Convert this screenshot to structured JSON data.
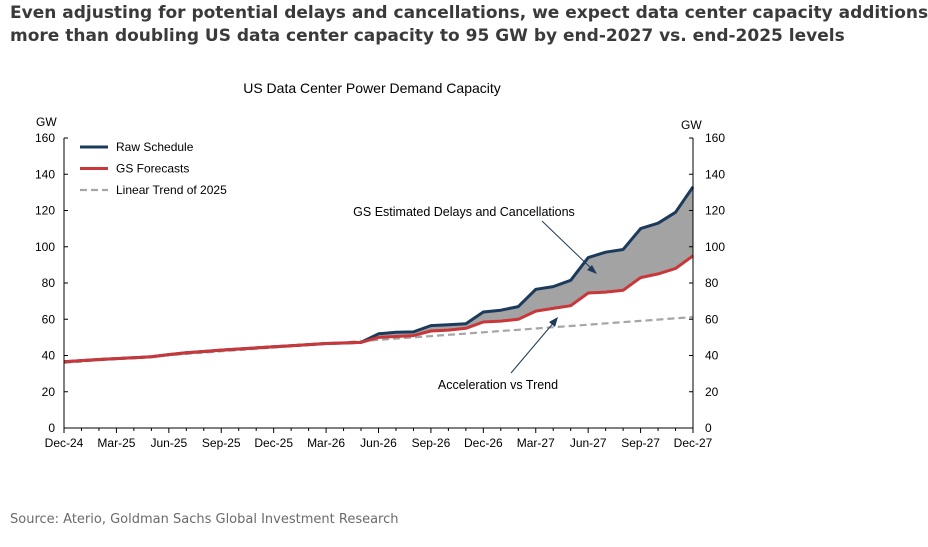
{
  "headline": {
    "line1": "Even adjusting for potential delays and cancellations, we expect data center capacity additions",
    "line2": "more than doubling US data center capacity to 95 GW by end-2027 vs. end-2025 levels"
  },
  "source": "Source: Aterio, Goldman Sachs Global Investment Research",
  "colors": {
    "raw": "#1b3a5c",
    "gs": "#c8373a",
    "trend": "#a6a6a6",
    "gap_fill": "#a3a3a3",
    "axis": "#000000"
  },
  "chart_data": {
    "type": "line",
    "title": "US Data Center Power Demand Capacity",
    "y_unit_left": "GW",
    "y_unit_right": "GW",
    "ylim": [
      0,
      160
    ],
    "y_ticks": [
      0,
      20,
      40,
      60,
      80,
      100,
      120,
      140,
      160
    ],
    "x_tick_labels": [
      "Dec-24",
      "Mar-25",
      "Jun-25",
      "Sep-25",
      "Dec-25",
      "Mar-26",
      "Jun-26",
      "Sep-26",
      "Dec-26",
      "Mar-27",
      "Jun-27",
      "Sep-27",
      "Dec-27"
    ],
    "x_months": [
      "Dec-24",
      "Jan-25",
      "Feb-25",
      "Mar-25",
      "Apr-25",
      "May-25",
      "Jun-25",
      "Jul-25",
      "Aug-25",
      "Sep-25",
      "Oct-25",
      "Nov-25",
      "Dec-25",
      "Jan-26",
      "Feb-26",
      "Mar-26",
      "Apr-26",
      "May-26",
      "Jun-26",
      "Jul-26",
      "Aug-26",
      "Sep-26",
      "Oct-26",
      "Nov-26",
      "Dec-26",
      "Jan-27",
      "Feb-27",
      "Mar-27",
      "Apr-27",
      "May-27",
      "Jun-27",
      "Jul-27",
      "Aug-27",
      "Sep-27",
      "Oct-27",
      "Nov-27",
      "Dec-27"
    ],
    "legend_position": "top-left",
    "series": [
      {
        "name": "Raw Schedule",
        "color": "#1b3a5c",
        "style": "solid",
        "values": [
          36.5,
          37.2,
          37.8,
          38.3,
          38.8,
          39.3,
          40.5,
          41.5,
          42.2,
          43,
          43.6,
          44.2,
          44.8,
          45.4,
          46,
          46.6,
          46.9,
          47.2,
          52,
          52.8,
          53,
          56.5,
          57,
          57.5,
          64,
          65,
          67,
          76.5,
          78,
          81.5,
          94,
          97,
          98.5,
          110,
          113,
          119,
          133
        ]
      },
      {
        "name": "GS Forecasts",
        "color": "#c8373a",
        "style": "solid",
        "values": [
          36.5,
          37.2,
          37.8,
          38.3,
          38.8,
          39.3,
          40.5,
          41.5,
          42.2,
          43,
          43.6,
          44.2,
          44.8,
          45.4,
          46,
          46.6,
          46.9,
          47.2,
          50,
          50.5,
          51,
          53.5,
          54,
          55,
          58.5,
          59,
          60,
          64.5,
          66,
          67.5,
          74.5,
          75,
          76,
          83,
          85,
          88,
          95
        ]
      },
      {
        "name": "Linear Trend of 2025",
        "color": "#a6a6a6",
        "style": "dashed",
        "values": [
          36,
          36.7,
          37.4,
          38.1,
          38.8,
          39.5,
          40.2,
          40.9,
          41.6,
          42.3,
          43,
          43.7,
          44.4,
          45.1,
          45.8,
          46.5,
          47.2,
          47.9,
          48.6,
          49.3,
          50,
          50.7,
          51.4,
          52.1,
          52.8,
          53.5,
          54.2,
          54.9,
          55.6,
          56.3,
          57,
          57.7,
          58.4,
          59.1,
          59.8,
          60.5,
          61.2
        ]
      }
    ],
    "annotations": [
      {
        "text": "GS Estimated Delays and Cancellations",
        "points_to": "gap between Raw Schedule and GS Forecasts"
      },
      {
        "text": "Acceleration vs Trend",
        "points_to": "gap between GS Forecasts and Linear Trend of 2025"
      }
    ],
    "grid": false
  }
}
